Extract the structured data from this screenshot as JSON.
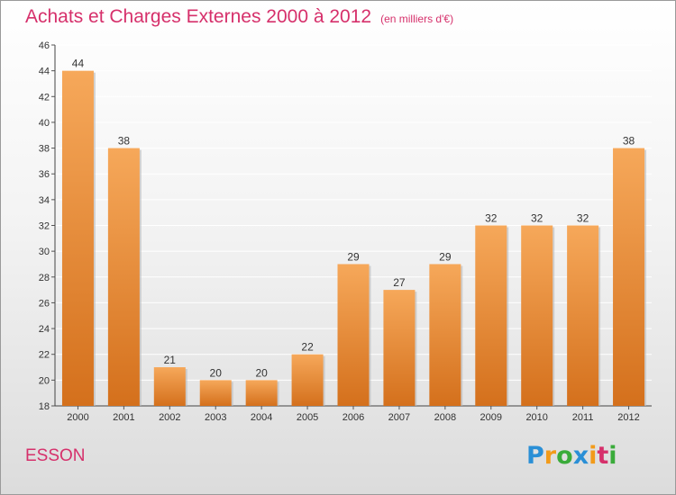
{
  "title": "Achats et Charges Externes 2000 à 2012",
  "subtitle": "(en milliers d'€)",
  "commune": "ESSON",
  "logo": {
    "letters": [
      "P",
      "r",
      "o",
      "x",
      "i",
      "t",
      "i"
    ],
    "colors": [
      "#2a8fd6",
      "#f29b1a",
      "#3aab3a",
      "#2a8fd6",
      "#f29b1a",
      "#d6306b",
      "#3aab3a"
    ]
  },
  "colors": {
    "bar_top": "#f6a85a",
    "bar_bottom": "#d4701c",
    "accent": "#d6306b"
  },
  "chart_data": {
    "type": "bar",
    "categories": [
      "2000",
      "2001",
      "2002",
      "2003",
      "2004",
      "2005",
      "2006",
      "2007",
      "2008",
      "2009",
      "2010",
      "2011",
      "2012"
    ],
    "values": [
      44,
      38,
      21,
      20,
      20,
      22,
      29,
      27,
      29,
      32,
      32,
      32,
      38
    ],
    "ylim": [
      18,
      46
    ],
    "yticks": [
      18,
      20,
      22,
      24,
      26,
      28,
      30,
      32,
      34,
      36,
      38,
      40,
      42,
      44,
      46
    ],
    "grid": true,
    "data_labels": true
  }
}
